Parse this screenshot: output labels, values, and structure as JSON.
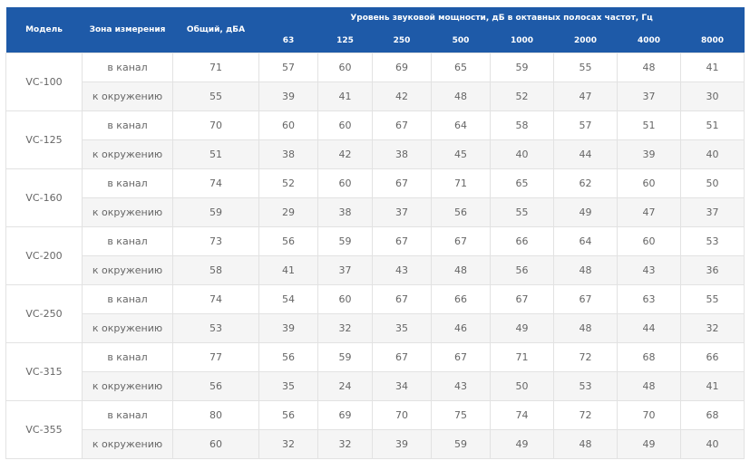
{
  "header": {
    "model": "Модель",
    "zone": "Зона измерения",
    "total": "Общий, дБА",
    "bands_title": "Уровень звуковой мощности, дБ в октавных полосах частот, Гц",
    "bands": [
      "63",
      "125",
      "250",
      "500",
      "1000",
      "2000",
      "4000",
      "8000"
    ]
  },
  "models": [
    {
      "name": "VC-100",
      "rows": [
        {
          "zone": "в канал",
          "total": 71,
          "values": [
            57,
            60,
            69,
            65,
            59,
            55,
            48,
            41
          ]
        },
        {
          "zone": "к окружению",
          "total": 55,
          "values": [
            39,
            41,
            42,
            48,
            52,
            47,
            37,
            30
          ]
        }
      ]
    },
    {
      "name": "VC-125",
      "rows": [
        {
          "zone": "в канал",
          "total": 70,
          "values": [
            60,
            60,
            67,
            64,
            58,
            57,
            51,
            51
          ]
        },
        {
          "zone": "к окружению",
          "total": 51,
          "values": [
            38,
            42,
            38,
            45,
            40,
            44,
            39,
            40
          ]
        }
      ]
    },
    {
      "name": "VC-160",
      "rows": [
        {
          "zone": "в канал",
          "total": 74,
          "values": [
            52,
            60,
            67,
            71,
            65,
            62,
            60,
            50
          ]
        },
        {
          "zone": "к окружению",
          "total": 59,
          "values": [
            29,
            38,
            37,
            56,
            55,
            49,
            47,
            37
          ]
        }
      ]
    },
    {
      "name": "VC-200",
      "rows": [
        {
          "zone": "в канал",
          "total": 73,
          "values": [
            56,
            59,
            67,
            67,
            66,
            64,
            60,
            53
          ]
        },
        {
          "zone": "к окружению",
          "total": 58,
          "values": [
            41,
            37,
            43,
            48,
            56,
            48,
            43,
            36
          ]
        }
      ]
    },
    {
      "name": "VC-250",
      "rows": [
        {
          "zone": "в канал",
          "total": 74,
          "values": [
            54,
            60,
            67,
            66,
            67,
            67,
            63,
            55
          ]
        },
        {
          "zone": "к окружению",
          "total": 53,
          "values": [
            39,
            32,
            35,
            46,
            49,
            48,
            44,
            32
          ]
        }
      ]
    },
    {
      "name": "VC-315",
      "rows": [
        {
          "zone": "в канал",
          "total": 77,
          "values": [
            56,
            59,
            67,
            67,
            71,
            72,
            68,
            66
          ]
        },
        {
          "zone": "к окружению",
          "total": 56,
          "values": [
            35,
            24,
            34,
            43,
            50,
            53,
            48,
            41
          ]
        }
      ]
    },
    {
      "name": "VC-355",
      "rows": [
        {
          "zone": "в канал",
          "total": 80,
          "values": [
            56,
            69,
            70,
            75,
            74,
            72,
            70,
            68
          ]
        },
        {
          "zone": "к окружению",
          "total": 60,
          "values": [
            32,
            32,
            39,
            59,
            49,
            48,
            49,
            40
          ]
        }
      ]
    }
  ]
}
